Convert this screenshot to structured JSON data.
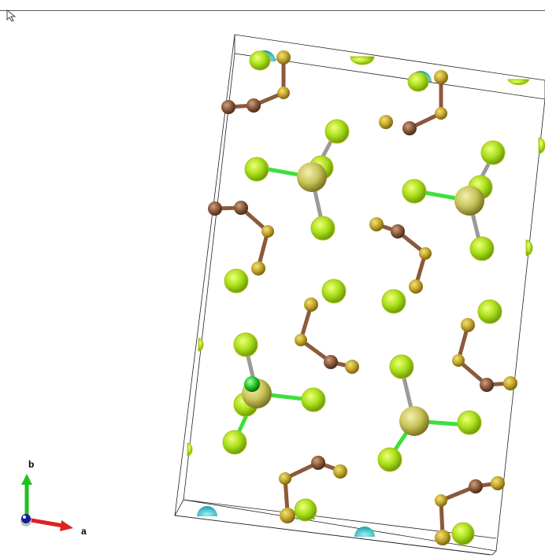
{
  "viewer": {
    "axes": {
      "a_label": "a",
      "b_label": "b",
      "c_label": ""
    },
    "cursor_icon": "pointer-arrow-icon"
  },
  "colors": {
    "background": "#ffffff",
    "bond_gray": "#9a9a9a",
    "bond_green": "#3ce03c",
    "atom_brown": "#8b5a3c",
    "atom_gold": "#b8a12a",
    "atom_yellow_green": "#b8e61e",
    "atom_central": "#c9c45a",
    "atom_cyan_cap": "#2fc8c8",
    "axis_a_red": "#e02020",
    "axis_b_green": "#20c020",
    "axis_c_blue": "#1a1a9a"
  }
}
